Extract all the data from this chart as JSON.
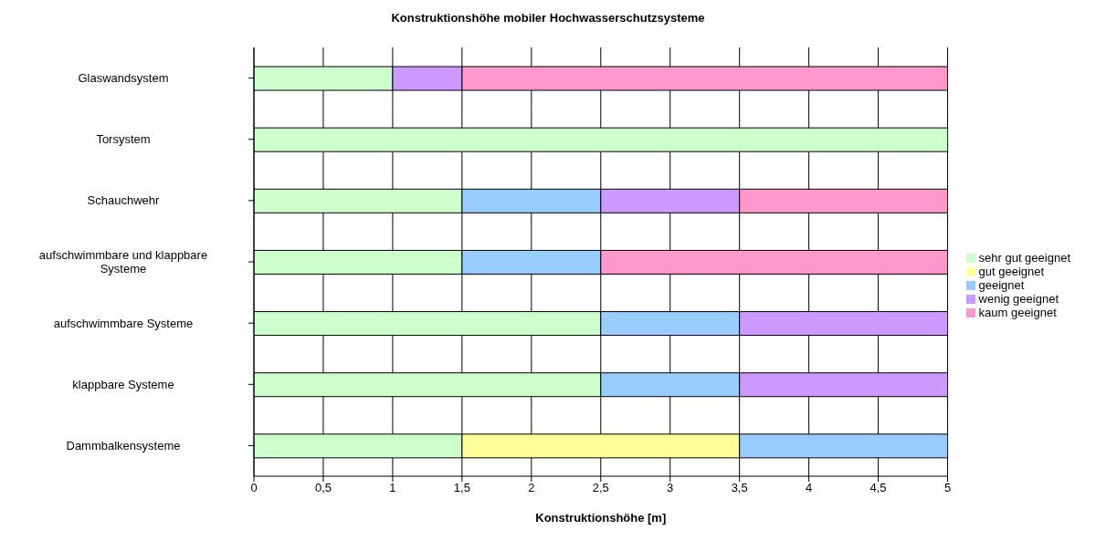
{
  "chart_data": {
    "type": "bar",
    "orientation": "horizontal",
    "stacked": true,
    "title": "Konstruktionshöhe mobiler Hochwasserschutzsysteme",
    "xlabel": "Konstruktionshöhe [m]",
    "categories": [
      "Glaswandsystem",
      "Torsystem",
      "Schauchwehr",
      "aufschwimmbare und klappbare Systeme",
      "aufschwimmbare Systeme",
      "klappbare Systeme",
      "Dammbalkensysteme"
    ],
    "series": [
      {
        "name": "sehr gut geeignet",
        "color": "#ccffcc",
        "values": [
          1,
          5,
          1.5,
          1.5,
          2.5,
          2.5,
          1.5
        ]
      },
      {
        "name": "gut geeignet",
        "color": "#ffff99",
        "values": [
          null,
          null,
          null,
          null,
          null,
          null,
          2
        ]
      },
      {
        "name": "geeignet",
        "color": "#99ccff",
        "values": [
          null,
          null,
          1,
          1,
          1,
          1,
          1.5
        ]
      },
      {
        "name": "wenig geeignet",
        "color": "#cc99ff",
        "values": [
          0.5,
          null,
          1,
          null,
          1.5,
          1.5,
          null
        ]
      },
      {
        "name": "kaum geeignet",
        "color": "#ff99cc",
        "values": [
          3.5,
          null,
          1.5,
          2.5,
          null,
          null,
          null
        ]
      }
    ],
    "xlim": [
      0,
      5
    ],
    "xticks": [
      0,
      {
        "value": 0.5,
        "label": "0,5"
      },
      1,
      {
        "value": 1.5,
        "label": "1,5"
      },
      2,
      {
        "value": 2.5,
        "label": "2,5"
      },
      3,
      {
        "value": 3.5,
        "label": "3,5"
      },
      4,
      {
        "value": 4.5,
        "label": "4,5"
      },
      5
    ],
    "grid": "x",
    "legend": "right"
  }
}
